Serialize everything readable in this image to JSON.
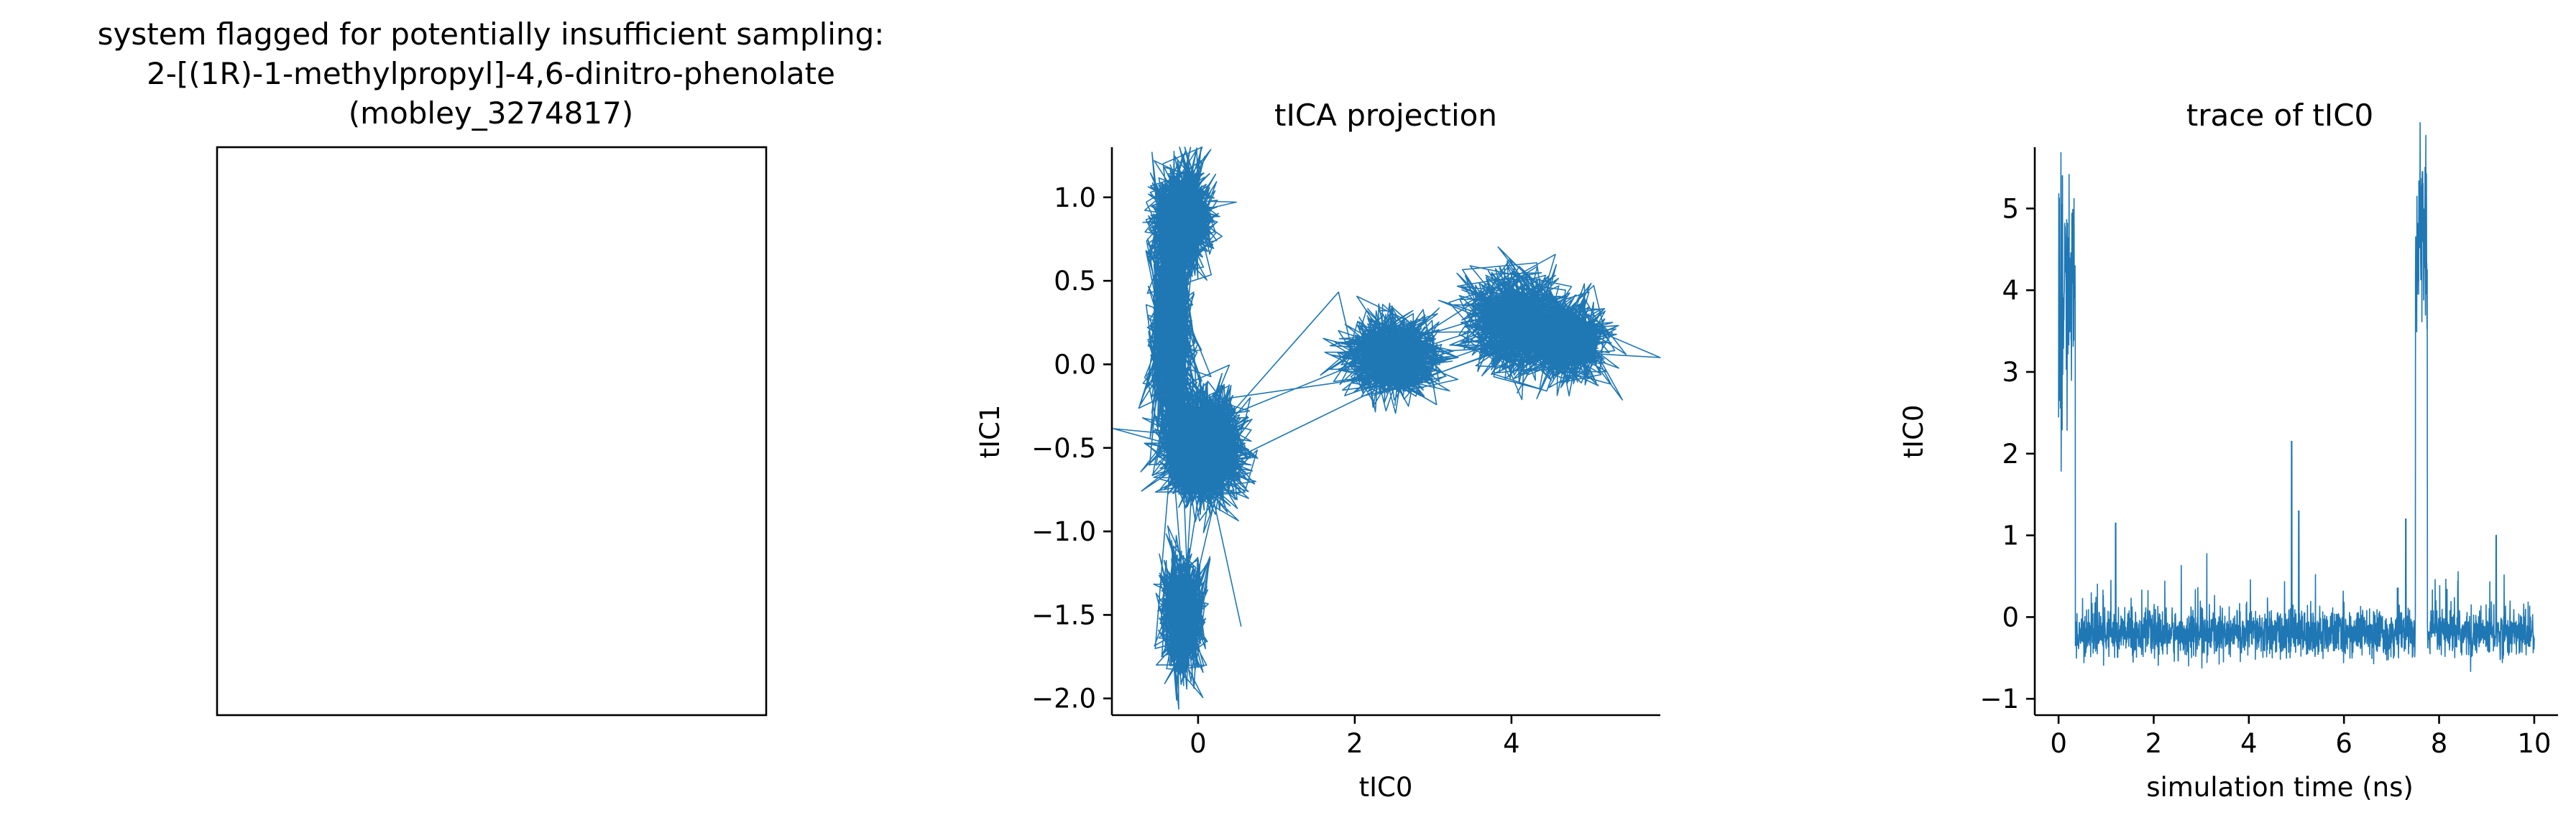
{
  "figure": {
    "panel1": {
      "title_lines": [
        "system flagged for potentially insufficient sampling:",
        "2-[(1R)-1-methylpropyl]-4,6-dinitro-phenolate",
        "(mobley_3274817)"
      ]
    }
  },
  "chart_data": [
    {
      "type": "image",
      "title": "system flagged for potentially insufficient sampling:\n2-[(1R)-1-methylpropyl]-4,6-dinitro-phenolate\n(mobley_3274817)",
      "axes_visible": false,
      "content": "empty frame"
    },
    {
      "type": "line",
      "title": "tICA projection",
      "xlabel": "tIC0",
      "ylabel": "tIC1",
      "xlim": [
        -1.1,
        5.9
      ],
      "ylim": [
        -2.1,
        1.3
      ],
      "xticks": [
        0,
        2,
        4
      ],
      "yticks": [
        -2.0,
        -1.5,
        -1.0,
        -0.5,
        0.0,
        0.5,
        1.0
      ],
      "color": "#1f77b4",
      "clusters": [
        {
          "center": [
            -0.2,
            0.85
          ],
          "spread": [
            0.18,
            0.15
          ]
        },
        {
          "center": [
            -0.35,
            0.2
          ],
          "spread": [
            0.12,
            0.3
          ]
        },
        {
          "center": [
            0.05,
            -0.5
          ],
          "spread": [
            0.25,
            0.15
          ]
        },
        {
          "center": [
            -0.2,
            -1.5
          ],
          "spread": [
            0.14,
            0.17
          ]
        },
        {
          "center": [
            2.5,
            0.05
          ],
          "spread": [
            0.3,
            0.12
          ]
        },
        {
          "center": [
            4.7,
            0.15
          ],
          "spread": [
            0.28,
            0.12
          ]
        },
        {
          "center": [
            4.1,
            0.25
          ],
          "spread": [
            0.35,
            0.15
          ]
        }
      ],
      "trajectory_end": [
        0.55,
        -1.57
      ]
    },
    {
      "type": "line",
      "title": "trace of tIC0",
      "xlabel": "simulation time (ns)",
      "ylabel": "tIC0",
      "xlim": [
        -0.5,
        10.5
      ],
      "ylim": [
        -1.2,
        5.75
      ],
      "xticks": [
        0,
        2,
        4,
        6,
        8,
        10
      ],
      "yticks": [
        -1,
        0,
        1,
        2,
        3,
        4,
        5
      ],
      "color": "#1f77b4",
      "x_range": [
        0,
        10
      ],
      "segments": [
        {
          "t": [
            0.0,
            0.35
          ],
          "level": 4.0,
          "note": "high state at start, peak 5.4"
        },
        {
          "t": [
            0.35,
            7.5
          ],
          "level": -0.2
        },
        {
          "t": [
            7.5,
            7.75
          ],
          "level": 4.6,
          "note": "high state, peak 5.45"
        },
        {
          "t": [
            7.75,
            10.0
          ],
          "level": -0.2
        }
      ],
      "spikes": [
        {
          "t": 1.2,
          "value": 1.15
        },
        {
          "t": 4.9,
          "value": 2.15
        },
        {
          "t": 5.05,
          "value": 1.3
        },
        {
          "t": 7.3,
          "value": 1.2
        },
        {
          "t": 9.2,
          "value": 1.0
        }
      ]
    }
  ]
}
